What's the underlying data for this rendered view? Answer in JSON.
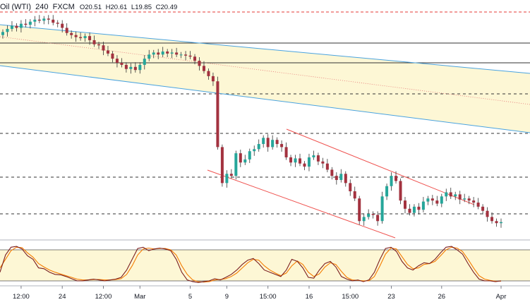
{
  "header": {
    "symbol": "Oil (WTI)",
    "interval": "240",
    "source": "FXCM",
    "open": "O20.51",
    "high": "H20.61",
    "low": "L19.85",
    "close": "C20.49"
  },
  "colors": {
    "bull": "#26a69a",
    "bear": "#a3323f",
    "candle_wick": "#333333",
    "channel_blue": "#4aa3df",
    "channel_fill": "#fdf7d5",
    "channel_red": "#ef5350",
    "midline_red": "#e57373",
    "resistance_red": "#e53935",
    "levels": "#333333",
    "stoch_k": "#7b1f1f",
    "stoch_d": "#f57c00",
    "stoch_band": "#fdf7d5"
  },
  "chart_data": [
    {
      "type": "candlestick",
      "title": "Oil (WTI), 240, FXCM",
      "x_tick_labels": [
        "12:00",
        "24",
        "12:00",
        "Mar",
        "5",
        "9",
        "15:00",
        "16",
        "15:00",
        "23",
        "26",
        "Apr"
      ],
      "x_tick_index": [
        4,
        13,
        22,
        30,
        41,
        49,
        58,
        67,
        76,
        85,
        96,
        109
      ],
      "horizontal_levels": [
        {
          "style": "dashed",
          "color": "red",
          "level": 1
        },
        {
          "style": "solid",
          "color": "dark",
          "level": 2
        },
        {
          "style": "solid",
          "color": "dark",
          "level": 3
        },
        {
          "style": "dashed",
          "color": "dark",
          "level": 4
        },
        {
          "style": "dashed",
          "color": "dark",
          "level": 5
        },
        {
          "style": "dashed",
          "color": "dark",
          "level": 6
        },
        {
          "style": "dashed",
          "color": "dark",
          "level": 7
        }
      ],
      "closes": [
        100,
        103,
        106,
        104,
        108,
        107,
        110,
        112,
        111,
        113,
        112,
        109,
        108,
        104,
        99,
        97,
        95,
        94,
        96,
        92,
        88,
        87,
        82,
        79,
        74,
        70,
        68,
        64,
        66,
        63,
        68,
        74,
        78,
        80,
        78,
        81,
        79,
        80,
        78,
        78,
        77,
        76,
        72,
        67,
        62,
        57,
        52,
        -12,
        -47,
        -38,
        -40,
        -18,
        -27,
        -24,
        -16,
        -14,
        -9,
        -3,
        -12,
        -5,
        -9,
        -12,
        -22,
        -27,
        -23,
        -28,
        -31,
        -22,
        -20,
        -26,
        -28,
        -34,
        -40,
        -44,
        -38,
        -47,
        -55,
        -62,
        -84,
        -80,
        -77,
        -78,
        -84,
        -60,
        -50,
        -40,
        -45,
        -64,
        -72,
        -76,
        -70,
        -73,
        -65,
        -62,
        -64,
        -67,
        -60,
        -56,
        -60,
        -58,
        -63,
        -62,
        -64,
        -66,
        -70,
        -74,
        -80,
        -84,
        -86,
        -85
      ],
      "stochastic": {
        "k": [
          30,
          70,
          88,
          90,
          84,
          68,
          60,
          40,
          38,
          30,
          25,
          24,
          20,
          15,
          10,
          10,
          12,
          14,
          12,
          10,
          12,
          14,
          18,
          35,
          60,
          85,
          88,
          80,
          84,
          86,
          84,
          80,
          60,
          30,
          12,
          8,
          6,
          8,
          10,
          15,
          12,
          18,
          25,
          35,
          48,
          58,
          62,
          50,
          35,
          30,
          25,
          20,
          35,
          60,
          55,
          40,
          18,
          16,
          35,
          50,
          55,
          42,
          20,
          14,
          10,
          12,
          8,
          12,
          30,
          60,
          85,
          88,
          78,
          55,
          40,
          35,
          45,
          52,
          50,
          60,
          75,
          88,
          90,
          82,
          72,
          50,
          30,
          14,
          10,
          10,
          8,
          10
        ],
        "d": [
          40,
          60,
          80,
          88,
          87,
          75,
          65,
          50,
          42,
          35,
          30,
          26,
          22,
          18,
          14,
          12,
          12,
          13,
          13,
          12,
          12,
          13,
          15,
          25,
          45,
          70,
          84,
          86,
          84,
          85,
          85,
          82,
          70,
          45,
          25,
          12,
          8,
          7,
          8,
          12,
          13,
          15,
          20,
          28,
          40,
          52,
          60,
          58,
          45,
          35,
          28,
          22,
          28,
          45,
          56,
          48,
          30,
          20,
          26,
          42,
          52,
          48,
          32,
          18,
          12,
          11,
          10,
          10,
          20,
          45,
          72,
          86,
          84,
          66,
          48,
          38,
          40,
          48,
          50,
          55,
          68,
          82,
          88,
          86,
          78,
          60,
          40,
          22,
          14,
          11,
          9,
          9
        ],
        "band": [
          20,
          80
        ]
      }
    }
  ]
}
